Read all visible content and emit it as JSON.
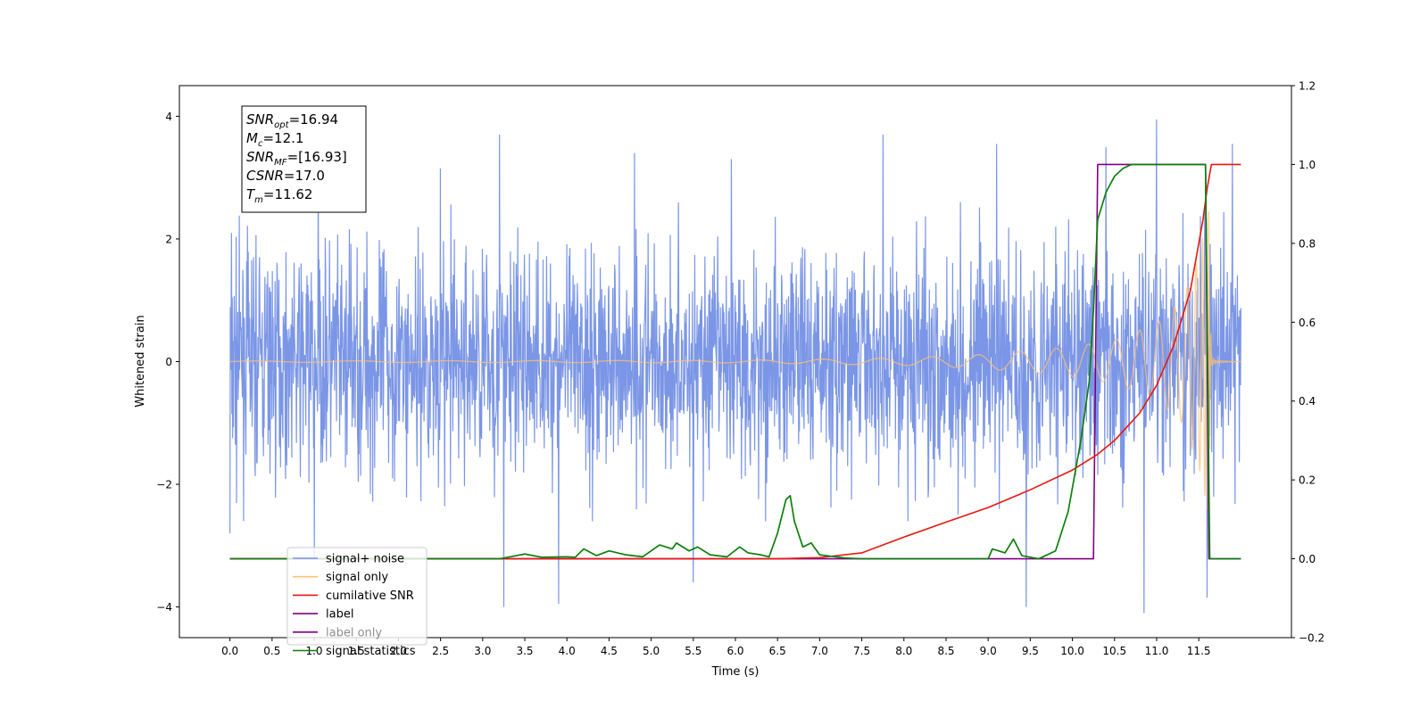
{
  "chart_data": {
    "type": "line",
    "xlabel": "Time (s)",
    "ylabel": "Whitened strain",
    "xlim": [
      -0.6,
      12.6
    ],
    "ylim": [
      -4.5,
      4.5
    ],
    "y2lim": [
      -0.2,
      1.2
    ],
    "x_ticks": [
      0.0,
      0.5,
      1.0,
      1.5,
      2.0,
      2.5,
      3.0,
      3.5,
      4.0,
      4.5,
      5.0,
      5.5,
      6.0,
      6.5,
      7.0,
      7.5,
      8.0,
      8.5,
      9.0,
      9.5,
      10.0,
      10.5,
      11.0,
      11.5
    ],
    "x_tick_labels": [
      "0.0",
      "0.5",
      "1.0",
      "1.5",
      "2.0",
      "2.5",
      "3.0",
      "3.5",
      "4.0",
      "4.5",
      "5.0",
      "5.5",
      "6.0",
      "6.5",
      "7.0",
      "7.5",
      "8.0",
      "8.5",
      "9.0",
      "9.5",
      "10.0",
      "10.5",
      "11.0",
      "11.5"
    ],
    "y_ticks": [
      -4,
      -2,
      0,
      2,
      4
    ],
    "y_tick_labels": [
      "−4",
      "−2",
      "0",
      "2",
      "4"
    ],
    "y2_ticks": [
      -0.2,
      0.0,
      0.2,
      0.4,
      0.6,
      0.8,
      1.0,
      1.2
    ],
    "y2_tick_labels": [
      "−0.2",
      "0.0",
      "0.2",
      "0.4",
      "0.6",
      "0.8",
      "1.0",
      "1.2"
    ],
    "grid": false,
    "legend_placement": "lower-left",
    "info_box": [
      {
        "sym": "SNR",
        "sub": "opt",
        "rest": "=16.94"
      },
      {
        "sym": "M",
        "sub": "c",
        "rest": "=12.1"
      },
      {
        "sym": "SNR",
        "sub": "MF",
        "rest": "=[16.93]"
      },
      {
        "sym": "CSNR",
        "sub": "",
        "rest": "=17.0"
      },
      {
        "sym": "T",
        "sub": "m",
        "rest": "=11.62"
      }
    ],
    "series": [
      {
        "name": "signal+ noise",
        "axis": "left",
        "color": "#7894e6",
        "envelope": {
          "x_range": [
            0.0,
            12.0
          ],
          "typical_max": 2.6,
          "typical_min": -2.6,
          "peak_max": [
            [
              0.0,
              2.45
            ],
            [
              1.05,
              3.1
            ],
            [
              2.5,
              3.15
            ],
            [
              3.2,
              3.7
            ],
            [
              4.8,
              3.4
            ],
            [
              5.95,
              3.3
            ],
            [
              7.75,
              3.7
            ],
            [
              9.1,
              3.55
            ],
            [
              10.4,
              3.5
            ],
            [
              11.0,
              3.95
            ],
            [
              11.9,
              3.55
            ]
          ],
          "peak_min": [
            [
              0.0,
              -2.8
            ],
            [
              1.0,
              -3.2
            ],
            [
              3.25,
              -4.0
            ],
            [
              3.9,
              -3.95
            ],
            [
              5.5,
              -3.6
            ],
            [
              9.45,
              -4.0
            ],
            [
              10.85,
              -4.1
            ],
            [
              11.6,
              -3.85
            ]
          ]
        }
      },
      {
        "name": "signal only",
        "axis": "left",
        "color": "#ffc070",
        "chirp_envelope": [
          [
            0.0,
            0.01
          ],
          [
            6.0,
            0.02
          ],
          [
            8.0,
            0.06
          ],
          [
            9.0,
            0.12
          ],
          [
            10.0,
            0.24
          ],
          [
            10.5,
            0.36
          ],
          [
            11.0,
            0.62
          ],
          [
            11.3,
            1.0
          ],
          [
            11.5,
            1.7
          ],
          [
            11.6,
            2.4
          ],
          [
            11.62,
            2.45
          ],
          [
            11.65,
            0.08
          ],
          [
            11.7,
            0.02
          ],
          [
            12.0,
            0.0
          ]
        ]
      },
      {
        "name": "cumilative SNR",
        "axis": "right",
        "color": "#e8170f",
        "points": [
          [
            0.0,
            0.0
          ],
          [
            6.5,
            0.0
          ],
          [
            7.0,
            0.003
          ],
          [
            7.5,
            0.015
          ],
          [
            8.0,
            0.055
          ],
          [
            8.5,
            0.093
          ],
          [
            9.0,
            0.13
          ],
          [
            9.5,
            0.175
          ],
          [
            10.0,
            0.225
          ],
          [
            10.3,
            0.265
          ],
          [
            10.5,
            0.3
          ],
          [
            10.8,
            0.37
          ],
          [
            11.0,
            0.44
          ],
          [
            11.2,
            0.54
          ],
          [
            11.4,
            0.68
          ],
          [
            11.55,
            0.86
          ],
          [
            11.6,
            0.94
          ],
          [
            11.65,
            1.0
          ],
          [
            12.0,
            1.0
          ]
        ]
      },
      {
        "name": "label",
        "axis": "right",
        "color": "#800080",
        "points": [
          [
            0.0,
            0.0
          ],
          [
            10.25,
            0.0
          ],
          [
            10.3,
            1.0
          ],
          [
            11.58,
            1.0
          ],
          [
            11.62,
            0.0
          ],
          [
            12.0,
            0.0
          ]
        ]
      },
      {
        "name": "label only",
        "axis": "right",
        "color": "#800080",
        "points": []
      },
      {
        "name": "signal statistics",
        "axis": "right",
        "color": "#0d800d",
        "points": [
          [
            0.0,
            0.0
          ],
          [
            3.2,
            0.0
          ],
          [
            3.35,
            0.006
          ],
          [
            3.5,
            0.012
          ],
          [
            3.7,
            0.004
          ],
          [
            4.0,
            0.005
          ],
          [
            4.1,
            0.004
          ],
          [
            4.2,
            0.025
          ],
          [
            4.35,
            0.008
          ],
          [
            4.5,
            0.02
          ],
          [
            4.7,
            0.01
          ],
          [
            4.9,
            0.005
          ],
          [
            5.1,
            0.035
          ],
          [
            5.25,
            0.025
          ],
          [
            5.3,
            0.04
          ],
          [
            5.45,
            0.02
          ],
          [
            5.55,
            0.03
          ],
          [
            5.7,
            0.01
          ],
          [
            5.9,
            0.005
          ],
          [
            6.05,
            0.03
          ],
          [
            6.15,
            0.015
          ],
          [
            6.3,
            0.01
          ],
          [
            6.4,
            0.005
          ],
          [
            6.5,
            0.065
          ],
          [
            6.6,
            0.15
          ],
          [
            6.65,
            0.16
          ],
          [
            6.7,
            0.095
          ],
          [
            6.8,
            0.03
          ],
          [
            6.9,
            0.04
          ],
          [
            7.0,
            0.01
          ],
          [
            7.3,
            0.002
          ],
          [
            7.5,
            0.0
          ],
          [
            9.0,
            0.0
          ],
          [
            9.05,
            0.025
          ],
          [
            9.2,
            0.015
          ],
          [
            9.3,
            0.05
          ],
          [
            9.4,
            0.008
          ],
          [
            9.6,
            0.0
          ],
          [
            9.8,
            0.02
          ],
          [
            9.95,
            0.12
          ],
          [
            10.1,
            0.3
          ],
          [
            10.2,
            0.45
          ],
          [
            10.25,
            0.63
          ],
          [
            10.3,
            0.86
          ],
          [
            10.4,
            0.93
          ],
          [
            10.5,
            0.97
          ],
          [
            10.6,
            0.99
          ],
          [
            10.7,
            1.0
          ],
          [
            11.58,
            1.0
          ],
          [
            11.63,
            0.0
          ],
          [
            12.0,
            0.0
          ]
        ]
      }
    ]
  }
}
